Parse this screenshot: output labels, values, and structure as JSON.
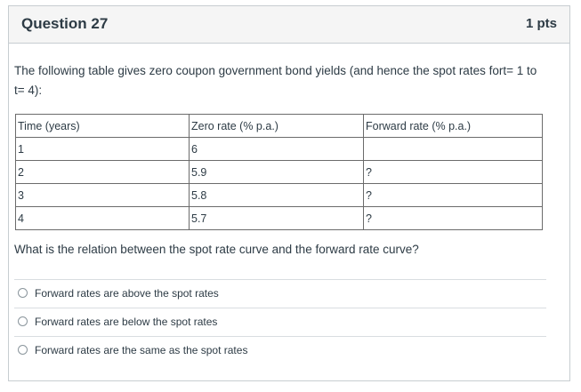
{
  "question": {
    "title": "Question 27",
    "points": "1 pts",
    "intro": "The following table gives zero coupon government bond yields (and hence the spot rates fort= 1 to t= 4):",
    "prompt": "What is the relation between the spot rate curve and the forward rate curve?"
  },
  "table": {
    "headers": [
      "Time (years)",
      "Zero rate (% p.a.)",
      "Forward rate (% p.a.)"
    ],
    "rows": [
      [
        "1",
        "6",
        ""
      ],
      [
        "2",
        "5.9",
        "?"
      ],
      [
        "3",
        "5.8",
        "?"
      ],
      [
        "4",
        "5.7",
        "?"
      ]
    ]
  },
  "answers": [
    "Forward rates are above the spot rates",
    "Forward rates are below the spot rates",
    "Forward rates are the same as the spot rates"
  ]
}
